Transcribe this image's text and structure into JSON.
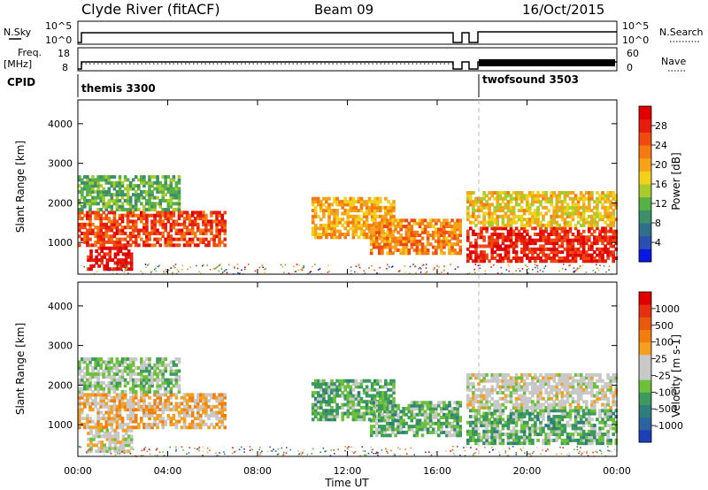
{
  "header": {
    "title": "Clyde River (fitACF)",
    "beam": "Beam 09",
    "date": "16/Oct/2015"
  },
  "panels": {
    "nsky": {
      "label": "N.Sky",
      "ticks": [
        "10^5",
        "10^0"
      ],
      "right_label": "N.Search",
      "right_ticks": [
        "10^5",
        "10^0"
      ]
    },
    "freq": {
      "label_line1": "Freq.",
      "label_line2": "[MHz]",
      "ticks": [
        "18",
        "8"
      ],
      "right_label": "Nave",
      "right_ticks": [
        "60",
        "0"
      ]
    },
    "cpid": {
      "label": "CPID",
      "modes": [
        {
          "name": "themis 3300",
          "start_hour": 0,
          "end_hour": 18
        },
        {
          "name": "twofsound 3503",
          "start_hour": 18,
          "end_hour": 24
        }
      ]
    }
  },
  "axes": {
    "xlabel": "Time UT",
    "x_ticks": [
      "00:00",
      "04:00",
      "08:00",
      "12:00",
      "16:00",
      "20:00",
      "00:00"
    ],
    "ylabel": "Slant Range [km]",
    "y_ticks": [
      "1000",
      "2000",
      "3000",
      "4000"
    ]
  },
  "colorbars": {
    "power": {
      "label": "Power [dB]",
      "ticks": [
        "4",
        "8",
        "12",
        "16",
        "20",
        "24",
        "28"
      ],
      "colors": [
        "#0a17e0",
        "#2a4fb0",
        "#2f6f8a",
        "#3c8f6a",
        "#56b046",
        "#a8cc2e",
        "#f3d01a",
        "#f6a21a",
        "#f57a12",
        "#f04a10",
        "#e81c0c",
        "#e00000"
      ]
    },
    "velocity": {
      "label": "Velocity [m s-1]",
      "ticks": [
        "1000",
        "500",
        "100",
        "25",
        "-25",
        "-100",
        "-500",
        "-1000"
      ],
      "colors": [
        "#1d3fb8",
        "#2c64a0",
        "#2f7d7c",
        "#3c9a5c",
        "#6cc03a",
        "#c8c8c8",
        "#c8c8c8",
        "#f5a020",
        "#f07f10",
        "#e85a0c",
        "#e83010",
        "#e00000"
      ]
    }
  },
  "chart_data": [
    {
      "type": "heatmap",
      "title": "Power",
      "xlabel": "Time UT",
      "ylabel": "Slant Range [km]",
      "xlim": [
        0,
        24
      ],
      "ylim": [
        200,
        4600
      ],
      "colorbar": "Power [dB]",
      "clim": [
        0,
        32
      ],
      "regions": [
        {
          "t0": 0.0,
          "t1": 6.5,
          "r0": 900,
          "r1": 1800,
          "level": 26
        },
        {
          "t0": 0.4,
          "t1": 2.4,
          "r0": 300,
          "r1": 900,
          "level": 30
        },
        {
          "t0": 0.0,
          "t1": 4.5,
          "r0": 1800,
          "r1": 2700,
          "level": 12
        },
        {
          "t0": 10.4,
          "t1": 14.0,
          "r0": 1100,
          "r1": 2100,
          "level": 20
        },
        {
          "t0": 13.0,
          "t1": 17.0,
          "r0": 700,
          "r1": 1600,
          "level": 22
        },
        {
          "t0": 17.3,
          "t1": 24.0,
          "r0": 500,
          "r1": 1400,
          "level": 28
        },
        {
          "t0": 17.3,
          "t1": 24.0,
          "r0": 1400,
          "r1": 2300,
          "level": 18
        }
      ]
    },
    {
      "type": "heatmap",
      "title": "Velocity",
      "xlabel": "Time UT",
      "ylabel": "Slant Range [km]",
      "xlim": [
        0,
        24
      ],
      "ylim": [
        200,
        4600
      ],
      "colorbar": "Velocity [m s-1]",
      "clim": [
        -1000,
        1000
      ],
      "regions": [
        {
          "t0": 0.0,
          "t1": 6.5,
          "r0": 900,
          "r1": 1800,
          "level": 200
        },
        {
          "t0": 0.4,
          "t1": 2.4,
          "r0": 300,
          "r1": 900,
          "level": 20
        },
        {
          "t0": 0.0,
          "t1": 4.5,
          "r0": 1800,
          "r1": 2700,
          "level": -200
        },
        {
          "t0": 10.4,
          "t1": 14.0,
          "r0": 1100,
          "r1": 2100,
          "level": -300
        },
        {
          "t0": 13.0,
          "t1": 17.0,
          "r0": 700,
          "r1": 1600,
          "level": -300
        },
        {
          "t0": 17.3,
          "t1": 24.0,
          "r0": 500,
          "r1": 1400,
          "level": -300
        },
        {
          "t0": 17.3,
          "t1": 24.0,
          "r0": 1400,
          "r1": 2300,
          "level": 0
        }
      ]
    }
  ]
}
